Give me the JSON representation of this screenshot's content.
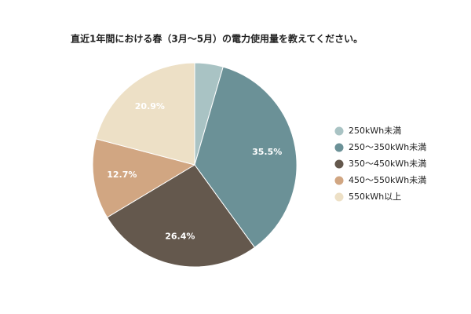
{
  "chart_data": {
    "type": "pie",
    "title": "直近1年間における春（3月～5月）の電力使用量を教えてください。",
    "categories": [
      "250kWh未満",
      "250～350kWh未満",
      "350～450kWh未満",
      "450～550kWh未満",
      "550kWh以上"
    ],
    "values": [
      4.5,
      35.5,
      26.4,
      12.7,
      20.9
    ],
    "value_labels": [
      null,
      "35.5%",
      "26.4%",
      "12.7%",
      "20.9%"
    ],
    "colors": [
      "#a9c3c4",
      "#6b9197",
      "#64584d",
      "#d1a682",
      "#ede0c6"
    ],
    "legend": "right"
  }
}
